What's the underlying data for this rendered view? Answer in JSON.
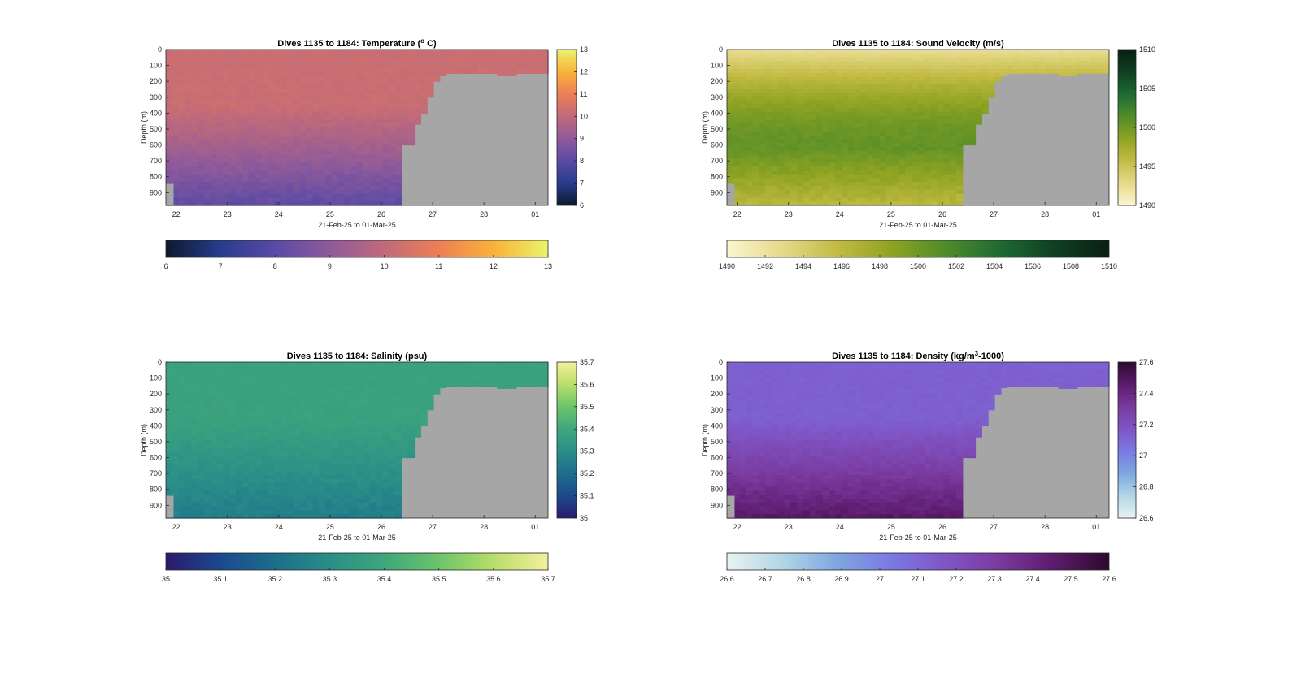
{
  "chart_data": [
    {
      "type": "heatmap",
      "title": "Dives 1135 to 1184: Temperature (°C)",
      "title_parts": {
        "pre": "Dives 1135 to 1184: Temperature (",
        "sup": "o",
        "post": " C)"
      },
      "xlabel": "21-Feb-25 to 01-Mar-25",
      "ylabel": "Depth (m)",
      "x_ticks": [
        "22",
        "23",
        "24",
        "25",
        "26",
        "27",
        "28",
        "01"
      ],
      "y_ticks": [
        "0",
        "100",
        "200",
        "300",
        "400",
        "500",
        "600",
        "700",
        "800",
        "900"
      ],
      "y_range": [
        0,
        980
      ],
      "x_range_days": [
        21.8,
        29.25
      ],
      "color_range": [
        6,
        13
      ],
      "colorbar_ticks": [
        "6",
        "7",
        "8",
        "9",
        "10",
        "11",
        "12",
        "13"
      ],
      "horizontal_colorbar_ticks": [
        "6",
        "7",
        "8",
        "9",
        "10",
        "11",
        "12",
        "13"
      ],
      "colormap": [
        "#0b1a2e",
        "#283c8c",
        "#5a4aa6",
        "#8f5a9a",
        "#c06a7a",
        "#ec7f55",
        "#f9b23a",
        "#e9f46b"
      ],
      "profile": {
        "surface": 10.2,
        "deep": 8.0
      },
      "no_data_color": "#a6a6a6"
    },
    {
      "type": "heatmap",
      "title": "Dives 1135 to 1184: Sound Velocity (m/s)",
      "title_parts": {
        "pre": "Dives 1135 to 1184: Sound Velocity (m/s)",
        "sup": "",
        "post": ""
      },
      "xlabel": "21-Feb-25 to 01-Mar-25",
      "ylabel": "Depth (m)",
      "x_ticks": [
        "22",
        "23",
        "24",
        "25",
        "26",
        "27",
        "28",
        "01"
      ],
      "y_ticks": [
        "0",
        "100",
        "200",
        "300",
        "400",
        "500",
        "600",
        "700",
        "800",
        "900"
      ],
      "y_range": [
        0,
        980
      ],
      "x_range_days": [
        21.8,
        29.25
      ],
      "color_range": [
        1490,
        1510
      ],
      "colorbar_ticks": [
        "1490",
        "1495",
        "1500",
        "1505",
        "1510"
      ],
      "horizontal_colorbar_ticks": [
        "1490",
        "1492",
        "1494",
        "1496",
        "1498",
        "1500",
        "1502",
        "1504",
        "1506",
        "1508",
        "1510"
      ],
      "colormap": [
        "#fbf6d0",
        "#e6d98a",
        "#c3bb45",
        "#8fa322",
        "#4f8c2a",
        "#1e6b33",
        "#0f3f22",
        "#0a1f12"
      ],
      "profile": {
        "surface": 1492.5,
        "deep": 1496.0,
        "mid": 1500.5
      },
      "no_data_color": "#a6a6a6"
    },
    {
      "type": "heatmap",
      "title": "Dives 1135 to 1184: Salinity (psu)",
      "title_parts": {
        "pre": "Dives 1135 to 1184: Salinity (psu)",
        "sup": "",
        "post": ""
      },
      "xlabel": "21-Feb-25 to 01-Mar-25",
      "ylabel": "Depth (m)",
      "x_ticks": [
        "22",
        "23",
        "24",
        "25",
        "26",
        "27",
        "28",
        "01"
      ],
      "y_ticks": [
        "0",
        "100",
        "200",
        "300",
        "400",
        "500",
        "600",
        "700",
        "800",
        "900"
      ],
      "y_range": [
        0,
        980
      ],
      "x_range_days": [
        21.8,
        29.25
      ],
      "color_range": [
        35,
        35.7
      ],
      "colorbar_ticks": [
        "35",
        "35.1",
        "35.2",
        "35.3",
        "35.4",
        "35.5",
        "35.6",
        "35.7"
      ],
      "horizontal_colorbar_ticks": [
        "35",
        "35.1",
        "35.2",
        "35.3",
        "35.4",
        "35.5",
        "35.6",
        "35.7"
      ],
      "colormap": [
        "#2a1a6e",
        "#1a4a8e",
        "#1d6e8c",
        "#2a8e88",
        "#3fa67c",
        "#6cc46a",
        "#b8de6a",
        "#f5ef9c"
      ],
      "profile": {
        "surface": 35.38,
        "deep": 35.24
      },
      "no_data_color": "#a6a6a6"
    },
    {
      "type": "heatmap",
      "title": "Dives 1135 to 1184: Density (kg/m³-1000)",
      "title_parts": {
        "pre": "Dives 1135 to 1184: Density (kg/m",
        "sup": "3",
        "post": "-1000)"
      },
      "xlabel": "21-Feb-25 to 01-Mar-25",
      "ylabel": "Depth (m)",
      "x_ticks": [
        "22",
        "23",
        "24",
        "25",
        "26",
        "27",
        "28",
        "01"
      ],
      "y_ticks": [
        "0",
        "100",
        "200",
        "300",
        "400",
        "500",
        "600",
        "700",
        "800",
        "900"
      ],
      "y_range": [
        0,
        980
      ],
      "x_range_days": [
        21.8,
        29.25
      ],
      "color_range": [
        26.6,
        27.6
      ],
      "colorbar_ticks": [
        "26.6",
        "26.8",
        "27",
        "27.2",
        "27.4",
        "27.6"
      ],
      "horizontal_colorbar_ticks": [
        "26.6",
        "26.7",
        "26.8",
        "26.9",
        "27",
        "27.1",
        "27.2",
        "27.3",
        "27.4",
        "27.5",
        "27.6"
      ],
      "colormap": [
        "#e9f2f2",
        "#b3d6e6",
        "#7ea7e0",
        "#7b7ae2",
        "#7f55c6",
        "#7a3a9e",
        "#5c1b6c",
        "#2c0a2c"
      ],
      "profile": {
        "surface": 27.13,
        "deep": 27.48
      },
      "no_data_color": "#a6a6a6"
    }
  ]
}
